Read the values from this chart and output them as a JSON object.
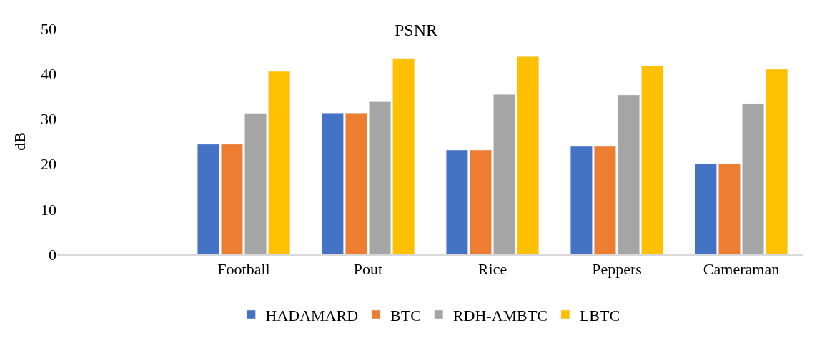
{
  "chart_data": {
    "type": "bar",
    "title": "PSNR",
    "ylabel": "dB",
    "categories": [
      null,
      "Football",
      "Pout",
      "Rice",
      "Peppers",
      "Cameraman"
    ],
    "series": [
      {
        "name": "HADAMARD",
        "color": "#4472c4",
        "values": [
          null,
          24.4,
          31.3,
          23.1,
          23.9,
          20.1
        ]
      },
      {
        "name": "BTC",
        "color": "#ed7d31",
        "values": [
          null,
          24.4,
          31.3,
          23.1,
          23.9,
          20.1
        ]
      },
      {
        "name": "RDH-AMBTC",
        "color": "#a5a5a5",
        "values": [
          null,
          31.2,
          33.8,
          35.4,
          35.3,
          33.4
        ]
      },
      {
        "name": "LBTC",
        "color": "#ffc000",
        "values": [
          null,
          40.5,
          43.4,
          43.8,
          41.7,
          41.0
        ]
      }
    ],
    "ylim": [
      0,
      50
    ],
    "yticks": [
      0,
      10,
      20,
      30,
      40,
      50
    ],
    "grid": false,
    "legend": "bottom"
  }
}
